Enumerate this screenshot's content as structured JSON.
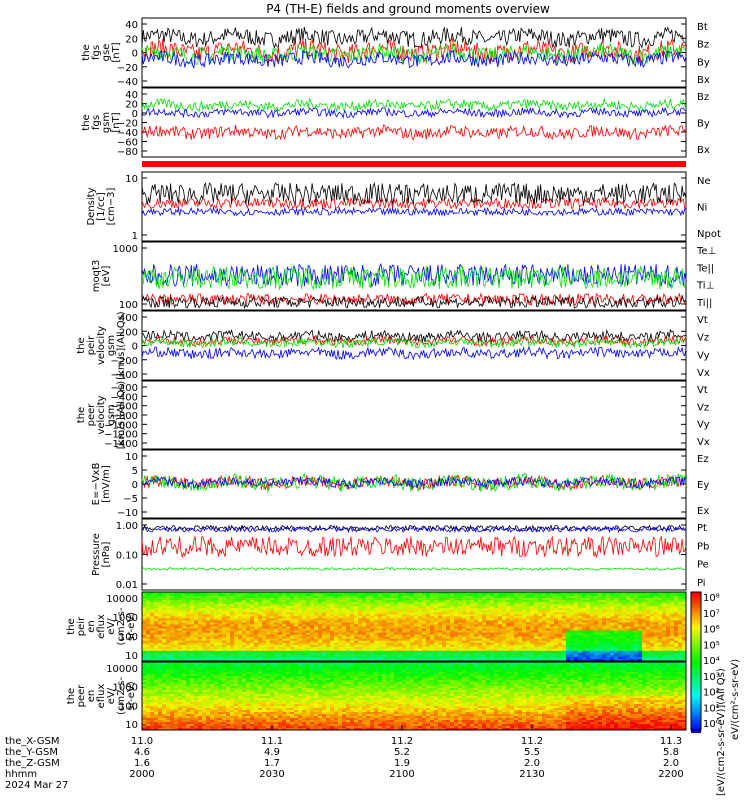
{
  "title": "P4 (TH-E) fields and ground moments overview",
  "colors": {
    "black": "#000000",
    "red": "#ff0000",
    "green": "#00e000",
    "blue": "#0000ff"
  },
  "chart_data": [
    {
      "type": "line",
      "panel": "fgs_gse",
      "ylabel": [
        "the",
        "fgs",
        "gse",
        "[nT]"
      ],
      "yticks": [
        "40",
        "20",
        "0",
        "−20",
        "−40"
      ],
      "ylim": [
        -50,
        50
      ],
      "series": [
        {
          "name": "Bt",
          "color": "black",
          "level": 22,
          "amp": 12
        },
        {
          "name": "Bz",
          "color": "red",
          "level": 2,
          "amp": 14
        },
        {
          "name": "By",
          "color": "green",
          "level": -2,
          "amp": 12
        },
        {
          "name": "Bx",
          "color": "blue",
          "level": -10,
          "amp": 10
        }
      ]
    },
    {
      "type": "line",
      "panel": "fgs_gsm",
      "ylabel": [
        "the",
        "fgs",
        "gsm",
        "[nT]"
      ],
      "yticks": [
        "40",
        "20",
        "0",
        "−20",
        "−40",
        "−60",
        "−80"
      ],
      "ylim": [
        -95,
        45
      ],
      "series": [
        {
          "name": "Bz",
          "color": "red",
          "level": -45,
          "amp": 12
        },
        {
          "name": "By",
          "color": "green",
          "level": 10,
          "amp": 10
        },
        {
          "name": "Bx",
          "color": "blue",
          "level": -5,
          "amp": 8
        }
      ]
    },
    {
      "type": "line",
      "panel": "density",
      "ylabel": [
        "Density",
        "[1/cc]",
        "[cm−3]"
      ],
      "yticks": [
        "10",
        "1"
      ],
      "log": true,
      "ylim": [
        0.5,
        40
      ],
      "series": [
        {
          "name": "Ne",
          "color": "red",
          "level": 5.5,
          "amp": 0.15
        },
        {
          "name": "Ni",
          "color": "black",
          "level": 10,
          "amp": 0.3
        },
        {
          "name": "Npot",
          "color": "blue",
          "level": 3.2,
          "amp": 0.1
        }
      ]
    },
    {
      "type": "line",
      "panel": "temperature",
      "ylabel": [
        "moqt3",
        "[eV]"
      ],
      "yticks": [
        "1000",
        "100"
      ],
      "log": true,
      "ylim": [
        50,
        3000
      ],
      "series": [
        {
          "name": "Te⊥",
          "color": "red",
          "level": 95,
          "amp": 0.15
        },
        {
          "name": "Te||",
          "color": "black",
          "level": 80,
          "amp": 0.15
        },
        {
          "name": "Ti⊥",
          "color": "blue",
          "level": 400,
          "amp": 0.3
        },
        {
          "name": "Ti||",
          "color": "green",
          "level": 350,
          "amp": 0.3
        }
      ]
    },
    {
      "type": "line",
      "panel": "peir_velocity",
      "ylabel": [
        "the",
        "peir",
        "velocity",
        "gsm",
        "[km/s](All Qs)"
      ],
      "yticks": [
        "400",
        "200",
        "0",
        "−200",
        "−400"
      ],
      "ylim": [
        -400,
        450
      ],
      "series": [
        {
          "name": "Vt",
          "color": "black",
          "level": 140,
          "amp": 60
        },
        {
          "name": "Vz",
          "color": "red",
          "level": 80,
          "amp": 50
        },
        {
          "name": "Vy",
          "color": "green",
          "level": 60,
          "amp": 50
        },
        {
          "name": "Vx",
          "color": "blue",
          "level": -70,
          "amp": 60
        }
      ]
    },
    {
      "type": "line",
      "panel": "peer_velocity",
      "ylabel": [
        "the",
        "peer",
        "velocity",
        "gsm",
        "[km/s](All Qs)"
      ],
      "yticks": [
        "−200",
        "−400",
        "−600",
        "−800",
        "−1000",
        "−1200",
        "−1400"
      ],
      "ylim": [
        -1500,
        -150
      ],
      "series": [
        {
          "name": "Vt",
          "color": "black"
        },
        {
          "name": "Vz",
          "color": "red"
        },
        {
          "name": "Vy",
          "color": "green"
        },
        {
          "name": "Vx",
          "color": "blue"
        }
      ]
    },
    {
      "type": "line",
      "panel": "efield",
      "ylabel": [
        "E=−VxB",
        "[mV/m]"
      ],
      "yticks": [
        "10",
        "5",
        "0",
        "−5",
        "−10"
      ],
      "ylim": [
        -12,
        11
      ],
      "series": [
        {
          "name": "Ez",
          "color": "red",
          "level": 0,
          "amp": 2
        },
        {
          "name": "Ey",
          "color": "green",
          "level": 0,
          "amp": 2.5
        },
        {
          "name": "Ex",
          "color": "blue",
          "level": 0,
          "amp": 1.5
        }
      ]
    },
    {
      "type": "line",
      "panel": "pressure",
      "ylabel": [
        "Pressure",
        "[nPa]"
      ],
      "yticks": [
        "1.00",
        "0.10",
        "0.01"
      ],
      "log": true,
      "ylim": [
        0.003,
        1.8
      ],
      "series": [
        {
          "name": "Pt",
          "color": "black",
          "level": 0.8,
          "amp": 0.1
        },
        {
          "name": "Pb",
          "color": "red",
          "level": 0.15,
          "amp": 0.4
        },
        {
          "name": "Pe",
          "color": "green",
          "level": 0.02,
          "amp": 0.05
        },
        {
          "name": "Pi",
          "color": "blue",
          "level": 0.7,
          "amp": 0.1
        }
      ]
    },
    {
      "type": "heatmap",
      "panel": "peir_spectrogram",
      "ylabel": [
        "the",
        "peir",
        "en",
        "eflux",
        "eV/",
        "(cm2-s-",
        "sr-eV)"
      ],
      "yticks": [
        "10000",
        "1000",
        "100",
        "10"
      ],
      "log": true
    },
    {
      "type": "heatmap",
      "panel": "peer_spectrogram",
      "ylabel": [
        "the",
        "peer",
        "en",
        "eflux",
        "eV/",
        "(cm2-s-",
        "sr-eV)"
      ],
      "yticks": [
        "10000",
        "1000",
        "100",
        "10"
      ],
      "log": true
    }
  ],
  "colorbar": {
    "tick_labels": [
      "10⁸",
      "10⁷",
      "10⁶",
      "10⁵",
      "10⁴",
      "10³",
      "10²",
      "10¹",
      "10⁰"
    ],
    "label": "[eV/(cm2-s-sr-eV)](All Qs)",
    "label_overlap": "eV/(cm²-s-sr-eV)"
  },
  "x_axis": {
    "row_labels": [
      "the_X-GSM",
      "the_Y-GSM",
      "the_Z-GSM",
      "hhmm",
      "2024 Mar 27"
    ],
    "x_gsm": [
      "11.0",
      "11.1",
      "11.2",
      "11.2",
      "11.3"
    ],
    "y_gsm": [
      "4.6",
      "4.9",
      "5.2",
      "5.5",
      "5.8"
    ],
    "z_gsm": [
      "1.6",
      "1.7",
      "1.9",
      "2.0",
      "2.0"
    ],
    "hhmm": [
      "2000",
      "2030",
      "2100",
      "2130",
      "2200"
    ]
  }
}
